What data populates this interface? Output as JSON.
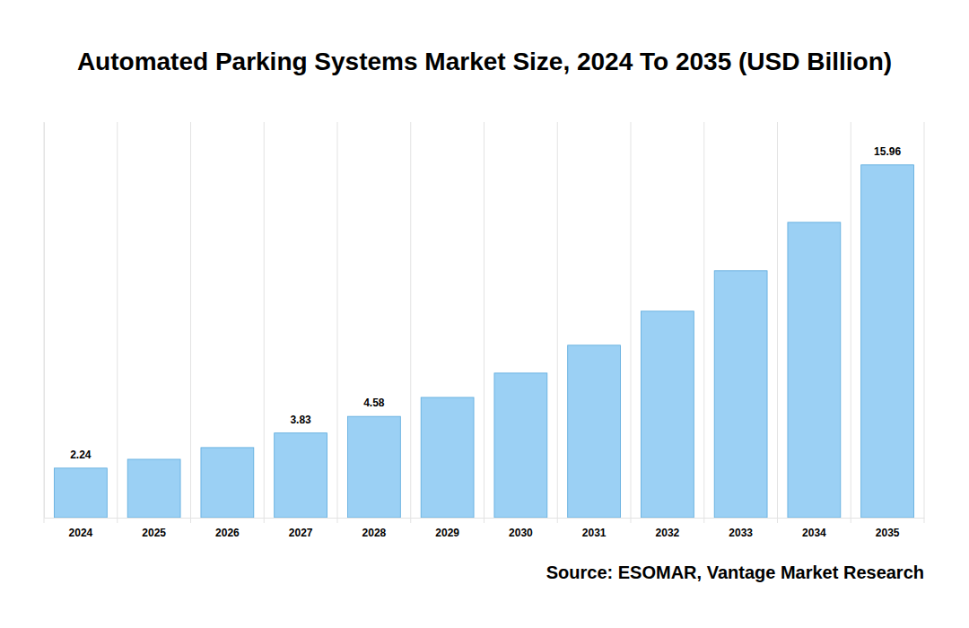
{
  "chart_data": {
    "type": "bar",
    "title": "Automated Parking Systems Market Size, 2024 To 2035 (USD Billion)",
    "source": "Source: ESOMAR, Vantage Market Research",
    "categories": [
      "2024",
      "2025",
      "2026",
      "2027",
      "2028",
      "2029",
      "2030",
      "2031",
      "2032",
      "2033",
      "2034",
      "2035"
    ],
    "values": [
      2.24,
      2.64,
      3.17,
      3.83,
      4.58,
      5.44,
      6.54,
      7.8,
      9.34,
      11.17,
      13.36,
      15.96
    ],
    "value_labels": [
      "2.24",
      null,
      null,
      "3.83",
      "4.58",
      null,
      null,
      null,
      null,
      null,
      null,
      "15.96"
    ],
    "data_labels": true,
    "color": "#9bd0f4",
    "ylim": [
      0,
      17.9
    ],
    "grid": true,
    "tick_labels": "x"
  }
}
